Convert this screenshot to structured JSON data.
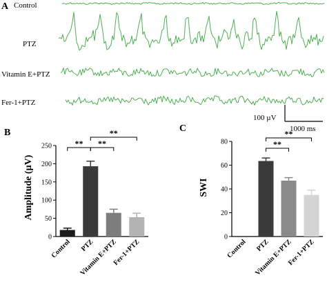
{
  "panels": {
    "a": {
      "letter": "A"
    },
    "b": {
      "letter": "B"
    },
    "c": {
      "letter": "C"
    }
  },
  "traces": {
    "color": "#4caf50",
    "items": [
      {
        "label": "Control"
      },
      {
        "label": "PTZ"
      },
      {
        "label": "Vitamin E+PTZ"
      },
      {
        "label": "Fer-1+PTZ"
      }
    ]
  },
  "scale_bar": {
    "voltage_label": "100 µV",
    "time_label": "1000 ms"
  },
  "chart_data": [
    {
      "panel": "B",
      "type": "bar",
      "title": "",
      "xlabel": "",
      "ylabel": "Amplitude (µV)",
      "ylim": [
        0,
        250
      ],
      "yticks": [
        "0",
        "50",
        "100",
        "150",
        "200",
        "250"
      ],
      "categories": [
        "Control",
        "PTZ",
        "Vitamin E+PTZ",
        "Fer-1+PTZ"
      ],
      "values": [
        18,
        193,
        65,
        53
      ],
      "errors": [
        5,
        14,
        10,
        11
      ],
      "bar_colors": [
        "#1a1a1a",
        "#3a3a3a",
        "#7d7d7d",
        "#b3b3b3"
      ],
      "grid": false,
      "significance": [
        {
          "label": "**",
          "from": 1,
          "to": 0,
          "tier": 1
        },
        {
          "label": "**",
          "from": 1,
          "to": 2,
          "tier": 1
        },
        {
          "label": "**",
          "from": 1,
          "to": 3,
          "tier": 2
        }
      ]
    },
    {
      "panel": "C",
      "type": "bar",
      "title": "",
      "xlabel": "",
      "ylabel": "SWI",
      "ylim": [
        0,
        80
      ],
      "yticks": [
        "0",
        "20",
        "40",
        "60",
        "80"
      ],
      "categories": [
        "Control",
        "PTZ",
        "Vitamin E+PTZ",
        "Fer-1+PTZ"
      ],
      "values": [
        0,
        63.5,
        47,
        35
      ],
      "errors": [
        0,
        2.5,
        2.5,
        4
      ],
      "bar_colors": [
        "#1a1a1a",
        "#3a3a3a",
        "#8a8a8a",
        "#d4d4d4"
      ],
      "grid": false,
      "significance": [
        {
          "label": "**",
          "from": 1,
          "to": 2,
          "tier": 1
        },
        {
          "label": "**",
          "from": 1,
          "to": 3,
          "tier": 2
        }
      ]
    }
  ]
}
